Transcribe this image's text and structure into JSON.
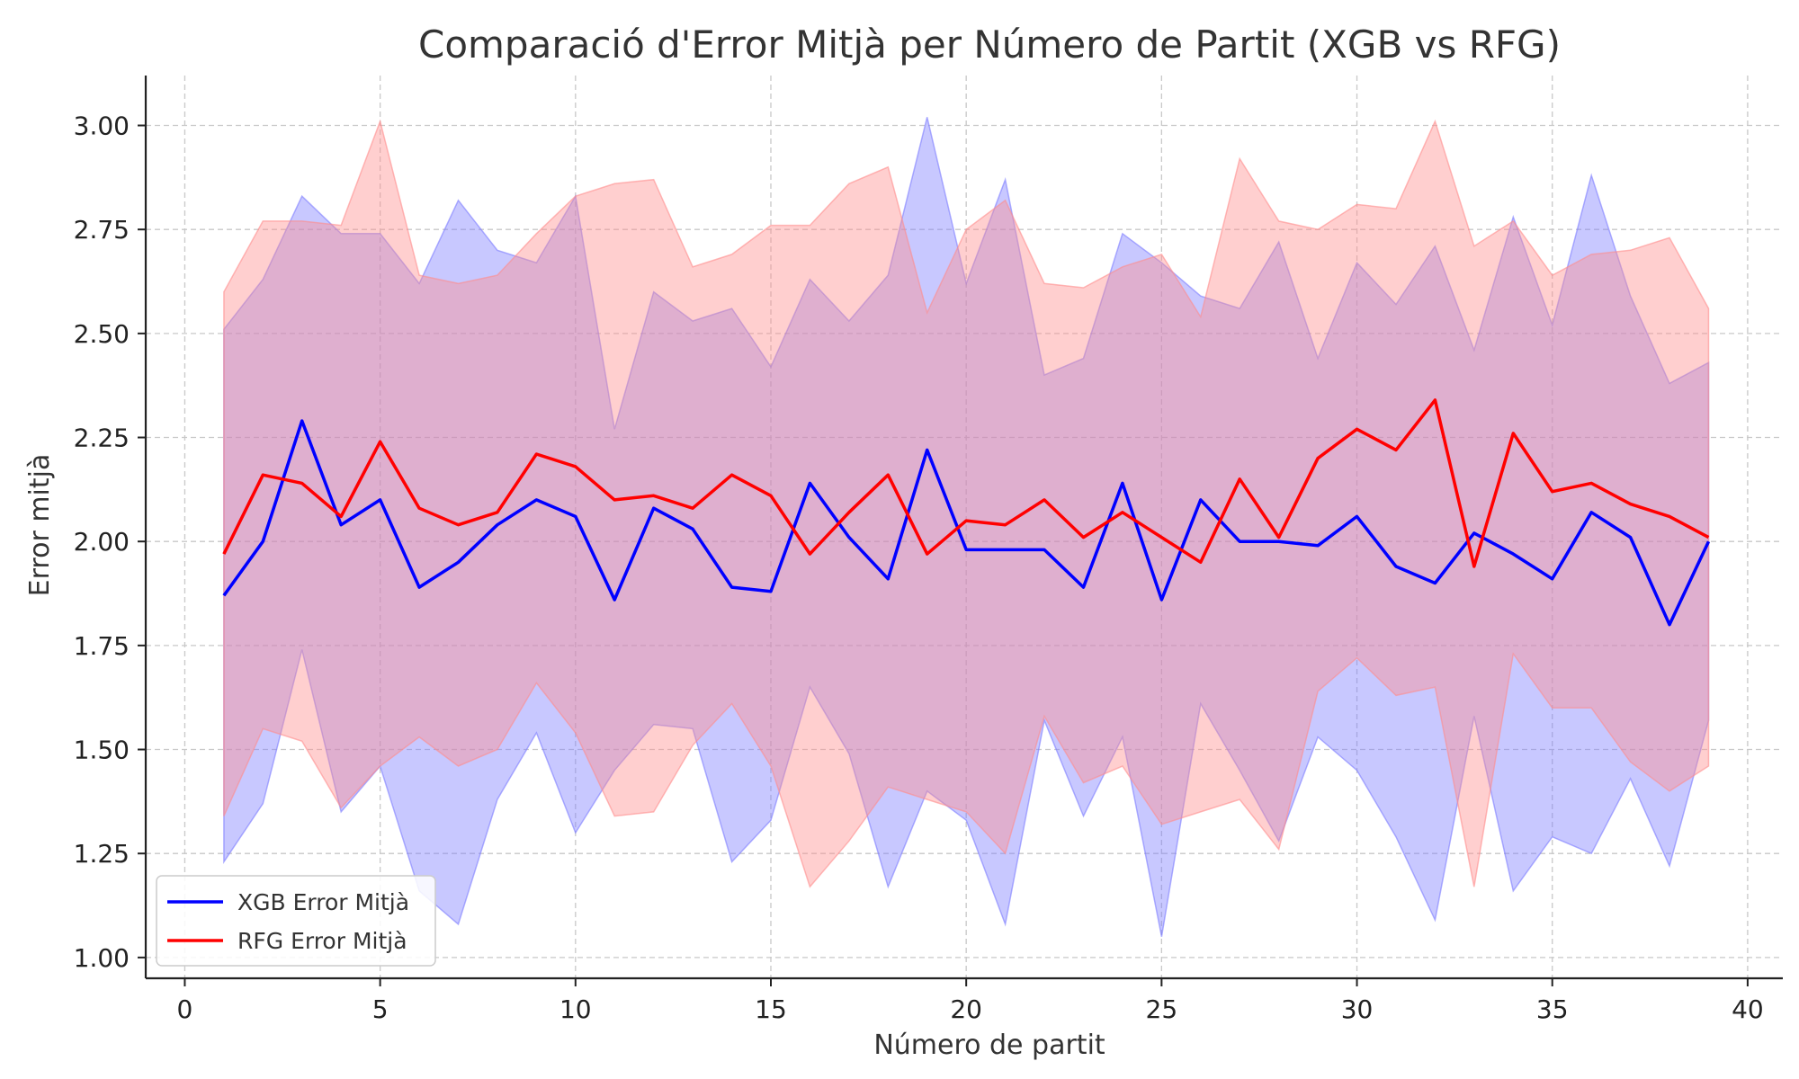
{
  "chart_data": {
    "type": "line",
    "title": "Comparació d'Error Mitjà per Número de Partit (XGB vs RFG)",
    "xlabel": "Número de partit",
    "ylabel": "Error mitjà",
    "xlim": [
      -1,
      40.9
    ],
    "ylim": [
      0.95,
      3.12
    ],
    "xticks": [
      "0",
      "5",
      "10",
      "15",
      "20",
      "25",
      "30",
      "35",
      "40"
    ],
    "yticks": [
      "1.00",
      "1.25",
      "1.50",
      "1.75",
      "2.00",
      "2.25",
      "2.50",
      "2.75",
      "3.00"
    ],
    "grid": true,
    "legend_position": "lower-left",
    "x": [
      1,
      2,
      3,
      4,
      5,
      6,
      7,
      8,
      9,
      10,
      11,
      12,
      13,
      14,
      15,
      16,
      17,
      18,
      19,
      20,
      21,
      22,
      23,
      24,
      25,
      26,
      27,
      28,
      29,
      30,
      31,
      32,
      33,
      34,
      35,
      36,
      37,
      38,
      39
    ],
    "series": [
      {
        "name": "XGB Error Mitjà",
        "color": "#0000ff",
        "band_color": "#7b7bff",
        "values": [
          1.87,
          2.0,
          2.29,
          2.04,
          2.1,
          1.89,
          1.95,
          2.04,
          2.1,
          2.06,
          1.86,
          2.08,
          2.03,
          1.89,
          1.88,
          2.14,
          2.01,
          1.91,
          2.22,
          1.98,
          1.98,
          1.98,
          1.89,
          2.14,
          1.86,
          2.1,
          2.0,
          2.0,
          1.99,
          2.06,
          1.94,
          1.9,
          2.02,
          1.97,
          1.91,
          2.07,
          2.01,
          1.8,
          2.0
        ],
        "upper": [
          2.51,
          2.63,
          2.83,
          2.74,
          2.74,
          2.62,
          2.82,
          2.7,
          2.67,
          2.83,
          2.27,
          2.6,
          2.53,
          2.56,
          2.42,
          2.63,
          2.53,
          2.64,
          3.02,
          2.62,
          2.87,
          2.4,
          2.44,
          2.74,
          2.67,
          2.59,
          2.56,
          2.72,
          2.44,
          2.67,
          2.57,
          2.71,
          2.46,
          2.78,
          2.52,
          2.88,
          2.59,
          2.38,
          2.43
        ],
        "lower": [
          1.23,
          1.37,
          1.74,
          1.35,
          1.46,
          1.16,
          1.08,
          1.38,
          1.54,
          1.3,
          1.45,
          1.56,
          1.55,
          1.23,
          1.33,
          1.65,
          1.49,
          1.17,
          1.4,
          1.33,
          1.08,
          1.57,
          1.34,
          1.53,
          1.05,
          1.61,
          1.45,
          1.28,
          1.53,
          1.45,
          1.29,
          1.09,
          1.58,
          1.16,
          1.29,
          1.25,
          1.43,
          1.22,
          1.57
        ]
      },
      {
        "name": "RFG Error Mitjà",
        "color": "#ff0000",
        "band_color": "#ff8c8c",
        "values": [
          1.97,
          2.16,
          2.14,
          2.06,
          2.24,
          2.08,
          2.04,
          2.07,
          2.21,
          2.18,
          2.1,
          2.11,
          2.08,
          2.16,
          2.11,
          1.97,
          2.07,
          2.16,
          1.97,
          2.05,
          2.04,
          2.1,
          2.01,
          2.07,
          2.01,
          1.95,
          2.15,
          2.01,
          2.2,
          2.27,
          2.22,
          2.34,
          1.94,
          2.26,
          2.12,
          2.14,
          2.09,
          2.06,
          2.01
        ],
        "upper": [
          2.6,
          2.77,
          2.77,
          2.76,
          3.01,
          2.64,
          2.62,
          2.64,
          2.74,
          2.83,
          2.86,
          2.87,
          2.66,
          2.69,
          2.76,
          2.76,
          2.86,
          2.9,
          2.55,
          2.75,
          2.82,
          2.62,
          2.61,
          2.66,
          2.69,
          2.54,
          2.92,
          2.77,
          2.75,
          2.81,
          2.8,
          3.01,
          2.71,
          2.77,
          2.64,
          2.69,
          2.7,
          2.73,
          2.56
        ],
        "lower": [
          1.34,
          1.55,
          1.52,
          1.36,
          1.46,
          1.53,
          1.46,
          1.5,
          1.66,
          1.54,
          1.34,
          1.35,
          1.51,
          1.61,
          1.46,
          1.17,
          1.28,
          1.41,
          1.38,
          1.35,
          1.25,
          1.58,
          1.42,
          1.46,
          1.32,
          1.35,
          1.38,
          1.26,
          1.64,
          1.72,
          1.63,
          1.65,
          1.17,
          1.73,
          1.6,
          1.6,
          1.47,
          1.4,
          1.46
        ]
      }
    ]
  }
}
